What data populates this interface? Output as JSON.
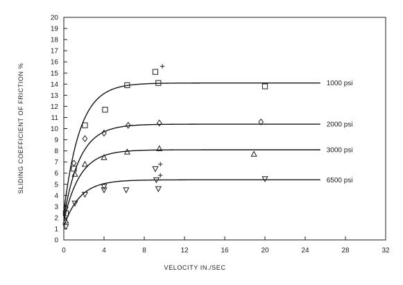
{
  "chart_data": {
    "type": "scatter",
    "title": "",
    "xlabel": "VELOCITY IN./SEC",
    "ylabel": "SLIDING COEFFICIENT OF FRICTION %",
    "xlim": [
      0,
      32
    ],
    "ylim": [
      0,
      20
    ],
    "x_ticks": [
      0,
      4,
      8,
      12,
      16,
      20,
      24,
      28,
      32
    ],
    "y_ticks": [
      0,
      1,
      2,
      3,
      4,
      5,
      6,
      7,
      8,
      9,
      10,
      11,
      12,
      13,
      14,
      15,
      16,
      17,
      18,
      19,
      20
    ],
    "grid": false,
    "colors": {
      "ink": "#1a1a1a",
      "curve": "#111111",
      "background": "#ffffff"
    },
    "series": [
      {
        "name": "1000 psi",
        "marker": "square",
        "curve": {
          "start": 2.5,
          "plateau": 14.1
        },
        "points": [
          [
            0.2,
            2.4
          ],
          [
            1.0,
            6.4
          ],
          [
            2.1,
            10.3
          ],
          [
            4.1,
            11.7
          ],
          [
            6.3,
            13.9
          ],
          [
            9.1,
            15.1
          ],
          [
            9.4,
            14.1
          ],
          [
            20.0,
            13.8
          ]
        ],
        "extra_points": [
          [
            9.8,
            15.6
          ]
        ]
      },
      {
        "name": "2000 psi",
        "marker": "diamond",
        "curve": {
          "start": 2.0,
          "plateau": 10.4
        },
        "points": [
          [
            0.2,
            2.9
          ],
          [
            1.0,
            6.9
          ],
          [
            2.1,
            9.1
          ],
          [
            4.0,
            9.6
          ],
          [
            6.4,
            10.3
          ],
          [
            9.5,
            10.5
          ],
          [
            19.6,
            10.6
          ]
        ],
        "extra_points": []
      },
      {
        "name": "3000 psi",
        "marker": "triangle-up",
        "curve": {
          "start": 1.7,
          "plateau": 8.1
        },
        "points": [
          [
            0.2,
            1.7
          ],
          [
            1.1,
            5.9
          ],
          [
            2.1,
            6.8
          ],
          [
            4.0,
            7.4
          ],
          [
            6.3,
            7.9
          ],
          [
            9.5,
            8.2
          ],
          [
            18.9,
            7.7
          ]
        ],
        "extra_points": []
      },
      {
        "name": "6500 psi",
        "marker": "triangle-down",
        "curve": {
          "start": 1.2,
          "plateau": 5.4
        },
        "points": [
          [
            0.2,
            1.2
          ],
          [
            1.1,
            3.3
          ],
          [
            2.1,
            4.1
          ],
          [
            4.0,
            4.5
          ],
          [
            4.0,
            4.8
          ],
          [
            6.2,
            4.5
          ],
          [
            9.1,
            6.4
          ],
          [
            9.4,
            4.6
          ],
          [
            9.2,
            5.4
          ],
          [
            20.0,
            5.5
          ]
        ],
        "extra_points": [
          [
            9.6,
            6.8
          ],
          [
            9.6,
            5.8
          ]
        ]
      }
    ]
  }
}
